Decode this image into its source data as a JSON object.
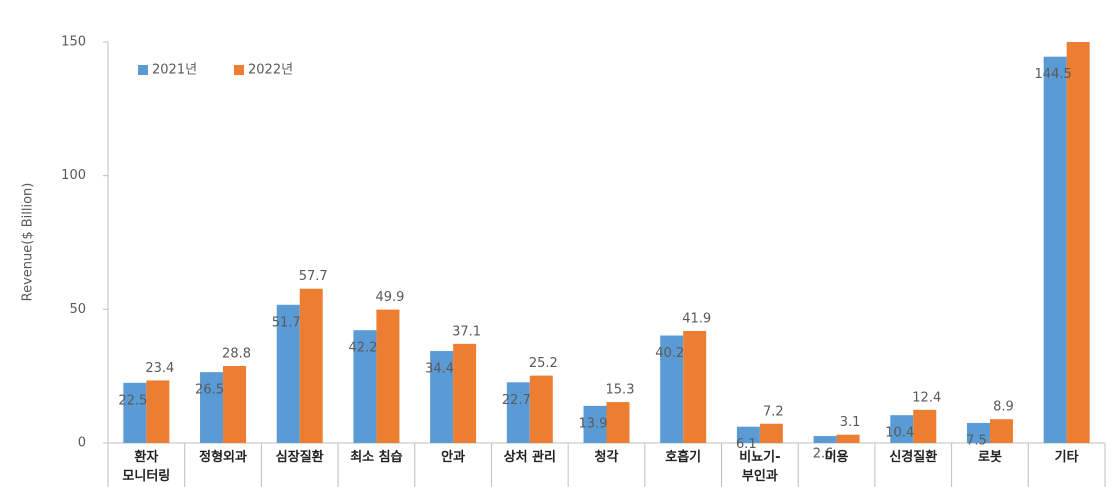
{
  "chart_data": {
    "type": "bar",
    "y_label": "Revenue($ Billion)",
    "categories": [
      "환자 모니터링",
      "정형외과",
      "심장질환",
      "최소 침습",
      "안과",
      "상처 관리",
      "청각",
      "호흡기",
      "비뇨기-부인과",
      "미용",
      "신경질환",
      "로봇",
      "기타"
    ],
    "series": [
      {
        "name": "2021년",
        "color": "#5b9bd5",
        "values": [
          22.5,
          26.5,
          51.7,
          42.2,
          34.4,
          22.7,
          13.9,
          40.2,
          6.1,
          2.6,
          10.4,
          7.5,
          144.5
        ]
      },
      {
        "name": "2022년",
        "color": "#ed7d31",
        "values": [
          23.4,
          28.8,
          57.7,
          49.9,
          37.1,
          25.2,
          15.3,
          41.9,
          7.2,
          3.1,
          12.4,
          8.9,
          156
        ],
        "value_labels": [
          "23.4",
          "28.8",
          "57.7",
          "49.9",
          "37.1",
          "25.2",
          "15.3",
          "41.9",
          "7.2",
          "3.1",
          "12.4",
          "8.9",
          null
        ]
      }
    ],
    "ylim": [
      0,
      150
    ],
    "yticks": [
      0,
      50,
      100,
      150
    ],
    "legend": "top-left"
  }
}
